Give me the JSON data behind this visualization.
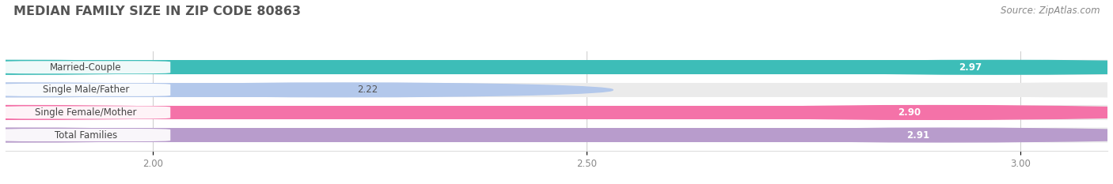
{
  "title": "MEDIAN FAMILY SIZE IN ZIP CODE 80863",
  "source": "Source: ZipAtlas.com",
  "categories": [
    "Married-Couple",
    "Single Male/Father",
    "Single Female/Mother",
    "Total Families"
  ],
  "values": [
    2.97,
    2.22,
    2.9,
    2.91
  ],
  "bar_colors": [
    "#3dbdb8",
    "#b3c8eb",
    "#f472a8",
    "#b89ccc"
  ],
  "xlim_min": 1.83,
  "xlim_max": 3.1,
  "data_min": 2.0,
  "data_max": 3.0,
  "xticks": [
    2.0,
    2.5,
    3.0
  ],
  "bar_height": 0.62,
  "background_color": "#ffffff",
  "bar_bg_color": "#ebebeb",
  "title_fontsize": 11.5,
  "label_fontsize": 8.5,
  "value_fontsize": 8.5,
  "source_fontsize": 8.5,
  "title_color": "#555555",
  "source_color": "#888888",
  "tick_color": "#888888",
  "grid_color": "#cccccc"
}
